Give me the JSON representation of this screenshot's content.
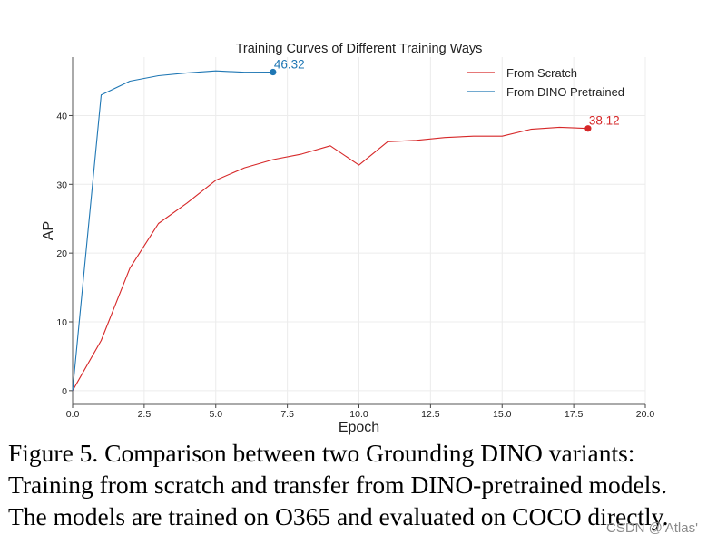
{
  "chart_data": {
    "type": "line",
    "title": "Training Curves of Different Training Ways",
    "xlabel": "Epoch",
    "ylabel": "AP",
    "xlim": [
      0,
      20
    ],
    "ylim": [
      -2,
      48.5
    ],
    "xticks": [
      "0.0",
      "2.5",
      "5.0",
      "7.5",
      "10.0",
      "12.5",
      "15.0",
      "17.5",
      "20.0"
    ],
    "yticks": [
      "0",
      "10",
      "20",
      "30",
      "40"
    ],
    "grid": true,
    "legend_position": "top-right",
    "series": [
      {
        "name": "From Scratch",
        "color": "#d62728",
        "x": [
          0,
          1,
          2,
          3,
          4,
          5,
          6,
          7,
          8,
          9,
          10,
          11,
          12,
          13,
          14,
          15,
          16,
          17,
          18
        ],
        "y": [
          0,
          7.3,
          17.8,
          24.3,
          27.3,
          30.6,
          32.4,
          33.6,
          34.4,
          35.6,
          32.8,
          36.2,
          36.4,
          36.8,
          37.0,
          37.0,
          38.0,
          38.3,
          38.12
        ],
        "end_label": "38.12"
      },
      {
        "name": "From DINO Pretrained",
        "color": "#1f77b4",
        "x": [
          0,
          1,
          2,
          3,
          4,
          5,
          6,
          7
        ],
        "y": [
          0,
          43.0,
          45.0,
          45.8,
          46.2,
          46.5,
          46.3,
          46.32
        ],
        "end_label": "46.32"
      }
    ]
  },
  "caption": {
    "lines": [
      "Figure 5.  Comparison between two Grounding DINO variants:",
      "Training from scratch and transfer from DINO-pretrained models.",
      "The models are trained on O365 and evaluated on COCO directly."
    ]
  },
  "watermark": "CSDN @'Atlas'"
}
